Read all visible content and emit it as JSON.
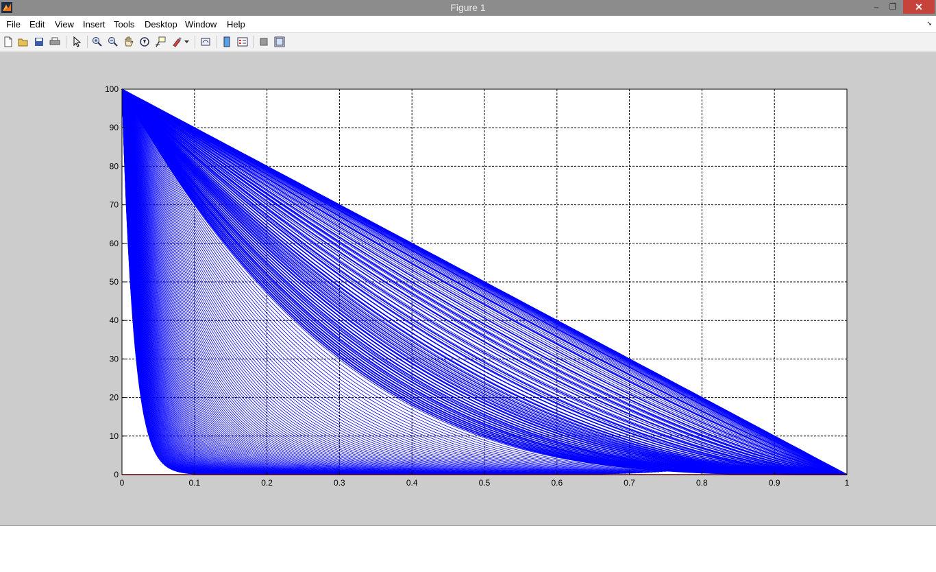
{
  "window": {
    "title": "Figure 1",
    "buttons": {
      "minimize": "–",
      "maximize": "❐",
      "close": "✕"
    }
  },
  "menubar": {
    "items": [
      "File",
      "Edit",
      "View",
      "Insert",
      "Tools",
      "Desktop",
      "Window",
      "Help"
    ]
  },
  "toolbar": {
    "icons": [
      "new-figure-icon",
      "open-file-icon",
      "save-icon",
      "print-icon",
      "edit-plot-arrow-icon",
      "zoom-in-icon",
      "zoom-out-icon",
      "pan-hand-icon",
      "rotate-3d-icon",
      "data-cursor-icon",
      "brush-icon",
      "link-plot-icon",
      "colorbar-icon",
      "legend-icon",
      "hide-plot-tools-icon",
      "show-plot-tools-icon"
    ]
  },
  "colors": {
    "series": "#0000ff",
    "baseline": "#ff0000",
    "figure_bg": "#cccccc",
    "axes_bg": "#ffffff"
  },
  "chart_data": {
    "type": "line",
    "title": "",
    "xlabel": "",
    "ylabel": "",
    "xlim": [
      0,
      1
    ],
    "ylim": [
      0,
      100
    ],
    "grid": true,
    "xticks": [
      "0",
      "0.1",
      "0.2",
      "0.3",
      "0.4",
      "0.5",
      "0.6",
      "0.7",
      "0.8",
      "0.9",
      "1"
    ],
    "yticks": [
      "0",
      "10",
      "20",
      "30",
      "40",
      "50",
      "60",
      "70",
      "80",
      "90",
      "100"
    ],
    "series_family": {
      "count": 220,
      "x_start": 0,
      "x_end": 1,
      "y_start": 100,
      "y_end": 0,
      "upper_envelope": [
        [
          0,
          100
        ],
        [
          1,
          0
        ]
      ],
      "color": "#0000ff"
    },
    "baseline": {
      "x": [
        0,
        1
      ],
      "y": [
        0,
        0
      ],
      "color": "#ff0000"
    }
  }
}
